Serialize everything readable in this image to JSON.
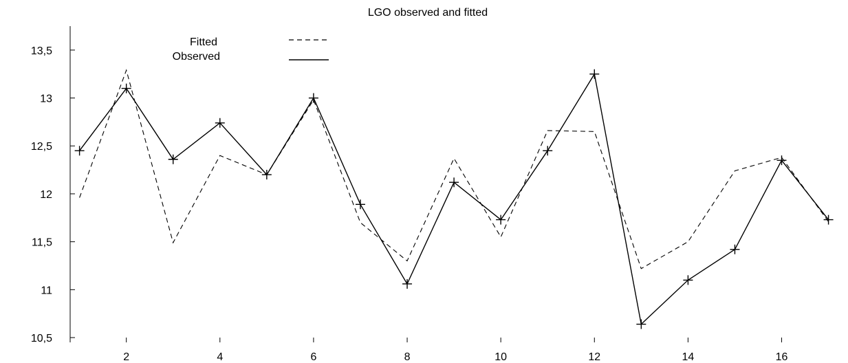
{
  "chart_data": {
    "type": "line",
    "title": "LGO observed and fitted",
    "xlabel": "",
    "ylabel": "",
    "xlim": [
      0.8,
      17.3
    ],
    "ylim": [
      10.45,
      13.75
    ],
    "x_ticks": [
      2,
      4,
      6,
      8,
      10,
      12,
      14,
      16
    ],
    "x_tick_labels": [
      "2",
      "4",
      "6",
      "8",
      "10",
      "12",
      "14",
      "16"
    ],
    "y_ticks": [
      10.5,
      11,
      11.5,
      12,
      12.5,
      13,
      13.5
    ],
    "y_tick_labels": [
      "10,5",
      "11",
      "11,5",
      "12",
      "12,5",
      "13",
      "13,5"
    ],
    "grid": false,
    "legend_position": "top-left",
    "x": [
      1,
      2,
      3,
      4,
      5,
      6,
      7,
      8,
      9,
      10,
      11,
      12,
      13,
      14,
      15,
      16,
      17
    ],
    "series": [
      {
        "name": "Fitted",
        "style": "dashed",
        "markers": false,
        "values": [
          11.96,
          13.29,
          11.49,
          12.4,
          12.2,
          12.98,
          11.7,
          11.3,
          12.37,
          11.55,
          12.66,
          12.65,
          11.22,
          11.5,
          12.24,
          12.38,
          11.71
        ]
      },
      {
        "name": "Observed",
        "style": "solid",
        "markers": true,
        "values": [
          12.45,
          13.1,
          12.36,
          12.74,
          12.2,
          13.0,
          11.89,
          11.06,
          12.12,
          11.73,
          12.45,
          13.25,
          10.64,
          11.1,
          11.42,
          12.35,
          11.73
        ]
      }
    ],
    "colors": {
      "line": "#000000",
      "background": "#ffffff"
    }
  }
}
